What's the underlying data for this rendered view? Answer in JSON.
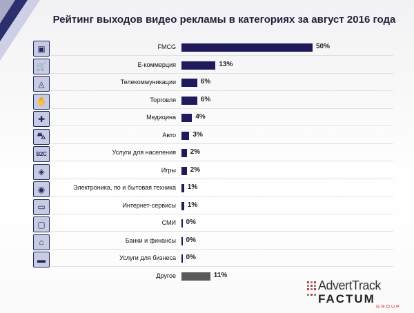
{
  "chart_data": {
    "type": "bar",
    "orientation": "horizontal",
    "title": "Рейтинг выходов видео рекламы в категориях за август 2016 года",
    "categories": [
      "FMCG",
      "E-коммерция",
      "Телекоммуникации",
      "Торговля",
      "Медицина",
      "Авто",
      "Услуги для населения",
      "Игры",
      "Электроника, по и бытовая техника",
      "Интернет-сервисы",
      "СМИ",
      "Банки и финансы",
      "Услуги для бизнеса",
      "Другое"
    ],
    "values": [
      50,
      13,
      6,
      6,
      4,
      3,
      2,
      2,
      1,
      1,
      0,
      0,
      0,
      11
    ],
    "value_labels": [
      "50%",
      "13%",
      "6%",
      "6%",
      "4%",
      "3%",
      "2%",
      "2%",
      "1%",
      "1%",
      "0%",
      "0%",
      "0%",
      "11%"
    ],
    "xlim": [
      0,
      50
    ],
    "grid": false,
    "legend": "none",
    "colors": {
      "bar": "#1f1a5c",
      "other_bar": "#5a5a5a"
    }
  },
  "icons": [
    "factory-icon",
    "cart-icon",
    "antenna-icon",
    "handshake-icon",
    "medical-icon",
    "car-icon",
    "b2c-icon",
    "gamepad-icon",
    "washer-icon",
    "monitor-icon",
    "tv-icon",
    "bank-icon",
    "briefcase-icon",
    null
  ],
  "icon_glyphs": [
    "▣",
    "🛒",
    "◬",
    "✋",
    "✚",
    "⛍",
    "B2C",
    "◈",
    "◉",
    "▭",
    "▢",
    "⌂",
    "▬",
    null
  ],
  "logo": {
    "line1": "AdvertTrack",
    "line2": "FACTUM",
    "line3": "GROUP"
  }
}
